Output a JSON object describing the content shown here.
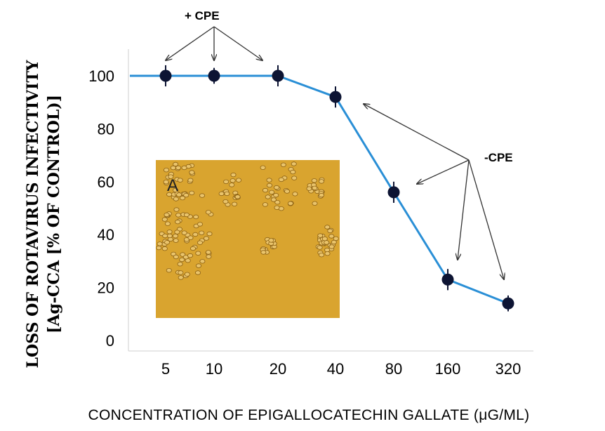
{
  "chart_data": {
    "type": "line",
    "categories": [
      "5",
      "10",
      "20",
      "40",
      "80",
      "160",
      "320"
    ],
    "series": [
      {
        "values": [
          100,
          100,
          100,
          92,
          56,
          23,
          14
        ],
        "error": [
          4,
          3,
          4,
          4,
          4,
          4,
          3
        ]
      }
    ],
    "ylabel_line1": "LOSS OF ROTAVIRUS INFECTIVITY",
    "ylabel_line2": "[Ag-CCA [% OF CONTROL)]",
    "xlabel": "CONCENTRATION OF EPIGALLOCATECHIN GALLATE (μG/ML)",
    "yticks": [
      0,
      20,
      40,
      60,
      80,
      100
    ],
    "ylim": [
      0,
      110
    ],
    "grid": false,
    "line_color": "#2a8fd6",
    "marker_color": "#0d1433",
    "annotations": {
      "plus_cpe": "+ CPE",
      "minus_cpe": "-CPE"
    },
    "inset": {
      "label": "A",
      "background": "#d9a42f"
    }
  }
}
